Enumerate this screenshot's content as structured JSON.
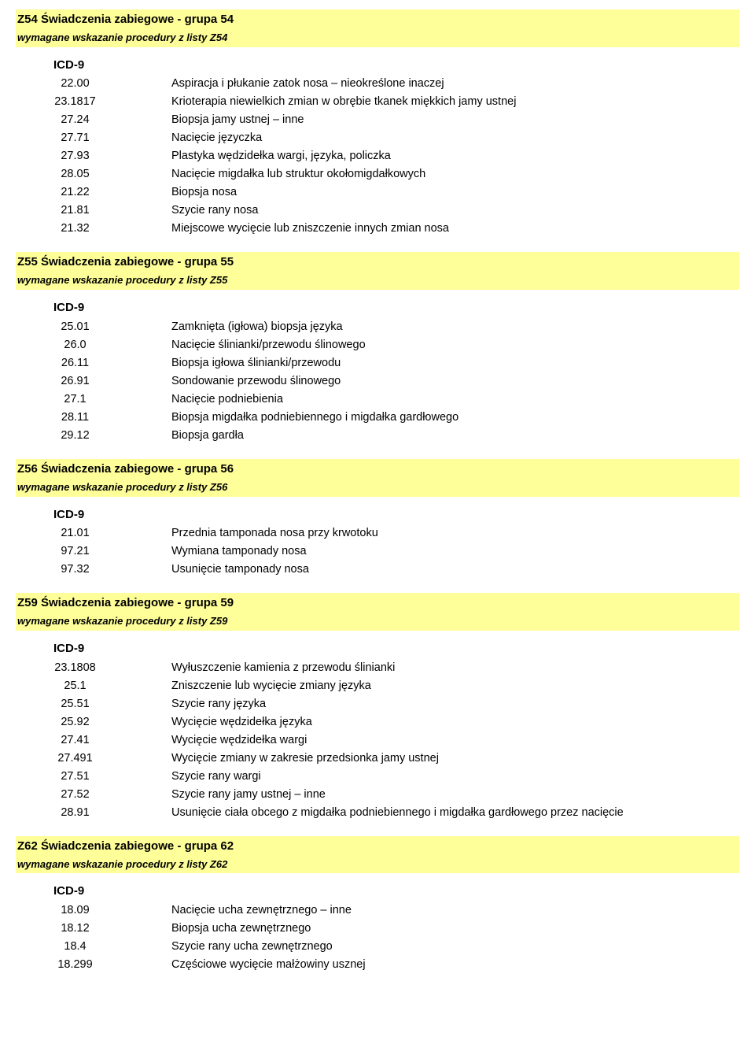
{
  "icd_label": "ICD-9",
  "highlight_bg": "#ffff99",
  "text_color": "#000000",
  "sections": [
    {
      "title": "Z54 Świadczenia zabiegowe - grupa 54",
      "note": "wymagane wskazanie procedury z listy Z54",
      "rows": [
        {
          "code": "22.00",
          "desc": "Aspiracja i płukanie zatok nosa – nieokreślone inaczej"
        },
        {
          "code": "23.1817",
          "desc": "Krioterapia niewielkich zmian w obrębie tkanek miękkich jamy ustnej"
        },
        {
          "code": "27.24",
          "desc": "Biopsja jamy ustnej – inne"
        },
        {
          "code": "27.71",
          "desc": "Nacięcie języczka"
        },
        {
          "code": "27.93",
          "desc": "Plastyka wędzidełka wargi, języka, policzka"
        },
        {
          "code": "28.05",
          "desc": "Nacięcie migdałka lub struktur okołomigdałkowych"
        },
        {
          "code": "21.22",
          "desc": "Biopsja nosa"
        },
        {
          "code": "21.81",
          "desc": "Szycie rany nosa"
        },
        {
          "code": "21.32",
          "desc": "Miejscowe wycięcie lub zniszczenie innych zmian nosa"
        }
      ]
    },
    {
      "title": "Z55 Świadczenia zabiegowe - grupa 55",
      "note": "wymagane wskazanie procedury z listy Z55",
      "rows": [
        {
          "code": "25.01",
          "desc": "Zamknięta (igłowa) biopsja języka"
        },
        {
          "code": "26.0",
          "desc": "Nacięcie ślinianki/przewodu ślinowego"
        },
        {
          "code": "26.11",
          "desc": "Biopsja igłowa ślinianki/przewodu"
        },
        {
          "code": "26.91",
          "desc": "Sondowanie przewodu ślinowego"
        },
        {
          "code": "27.1",
          "desc": "Nacięcie podniebienia"
        },
        {
          "code": "28.11",
          "desc": "Biopsja migdałka podniebiennego i migdałka gardłowego"
        },
        {
          "code": "29.12",
          "desc": "Biopsja gardła"
        }
      ]
    },
    {
      "title": "Z56 Świadczenia zabiegowe - grupa 56",
      "note": "wymagane wskazanie procedury z listy Z56",
      "rows": [
        {
          "code": "21.01",
          "desc": "Przednia tamponada nosa przy krwotoku"
        },
        {
          "code": "97.21",
          "desc": "Wymiana tamponady nosa"
        },
        {
          "code": "97.32",
          "desc": "Usunięcie tamponady nosa"
        }
      ]
    },
    {
      "title": "Z59 Świadczenia zabiegowe - grupa 59",
      "note": "wymagane wskazanie procedury z listy Z59",
      "rows": [
        {
          "code": "23.1808",
          "desc": "Wyłuszczenie kamienia z przewodu ślinianki"
        },
        {
          "code": "25.1",
          "desc": "Zniszczenie lub wycięcie zmiany języka"
        },
        {
          "code": "25.51",
          "desc": "Szycie rany języka"
        },
        {
          "code": "25.92",
          "desc": "Wycięcie wędzidełka języka"
        },
        {
          "code": "27.41",
          "desc": "Wycięcie wędzidełka wargi"
        },
        {
          "code": "27.491",
          "desc": "Wycięcie zmiany w zakresie przedsionka jamy ustnej"
        },
        {
          "code": "27.51",
          "desc": "Szycie rany wargi"
        },
        {
          "code": "27.52",
          "desc": "Szycie rany jamy ustnej – inne"
        },
        {
          "code": "28.91",
          "desc": "Usunięcie ciała obcego z migdałka podniebiennego i migdałka gardłowego przez nacięcie"
        }
      ]
    },
    {
      "title": "Z62 Świadczenia zabiegowe - grupa 62",
      "note": "wymagane wskazanie procedury z listy Z62",
      "rows": [
        {
          "code": "18.09",
          "desc": "Nacięcie ucha zewnętrznego – inne"
        },
        {
          "code": "18.12",
          "desc": "Biopsja ucha zewnętrznego"
        },
        {
          "code": "18.4",
          "desc": "Szycie rany ucha zewnętrznego"
        },
        {
          "code": "18.299",
          "desc": "Częściowe wycięcie małżowiny usznej"
        }
      ]
    }
  ]
}
